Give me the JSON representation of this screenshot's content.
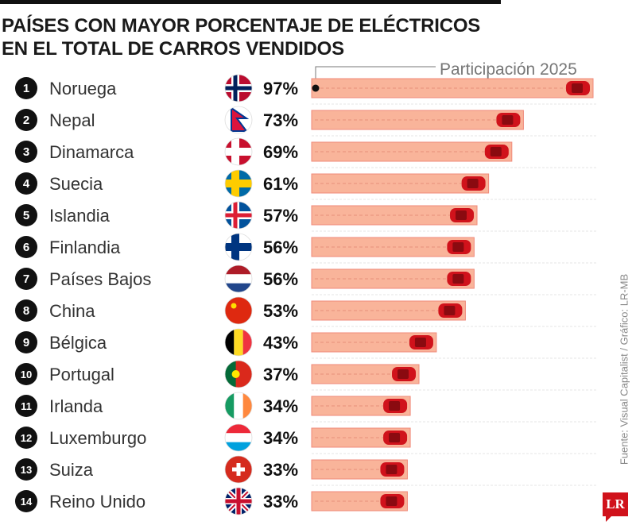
{
  "chart_data": {
    "type": "bar",
    "orientation": "horizontal",
    "title": "PAÍSES CON MAYOR PORCENTAJE DE ELÉCTRICOS EN EL TOTAL DE CARROS VENDIDOS",
    "title_lines": [
      "PAÍSES CON MAYOR PORCENTAJE DE ELÉCTRICOS",
      "EN EL TOTAL DE CARROS VENDIDOS"
    ],
    "legend": "Participación 2025",
    "unit": "%",
    "xlim": [
      0,
      100
    ],
    "grid": false,
    "colors": {
      "bar": "#f9b49a",
      "bar_border": "#f08a7a",
      "car": "#d0121b",
      "rank_circle": "#111111"
    },
    "ranks": [
      "1",
      "2",
      "3",
      "4",
      "5",
      "6",
      "7",
      "8",
      "9",
      "10",
      "11",
      "12",
      "13",
      "14"
    ],
    "categories": [
      "Noruega",
      "Nepal",
      "Dinamarca",
      "Suecia",
      "Islandia",
      "Finlandia",
      "Países Bajos",
      "China",
      "Bélgica",
      "Portugal",
      "Irlanda",
      "Luxemburgo",
      "Suiza",
      "Reino Unido"
    ],
    "values": [
      97,
      73,
      69,
      61,
      57,
      56,
      56,
      53,
      43,
      37,
      34,
      34,
      33,
      33
    ],
    "labels": [
      "97%",
      "73%",
      "69%",
      "61%",
      "57%",
      "56%",
      "56%",
      "53%",
      "43%",
      "37%",
      "34%",
      "34%",
      "33%",
      "33%"
    ],
    "flags": [
      "norway-flag",
      "nepal-flag",
      "denmark-flag",
      "sweden-flag",
      "iceland-flag",
      "finland-flag",
      "netherlands-flag",
      "china-flag",
      "belgium-flag",
      "portugal-flag",
      "ireland-flag",
      "luxembourg-flag",
      "switzerland-flag",
      "uk-flag"
    ]
  },
  "source": "Fuente: Visual Capitalist / Gráfico: LR-MB",
  "logo": "LR"
}
